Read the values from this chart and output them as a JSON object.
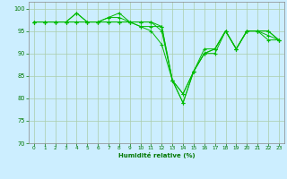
{
  "xlabel": "Humidité relative (%)",
  "background_color": "#cceeff",
  "grid_color": "#aaccaa",
  "line_color": "#00bb00",
  "marker_color": "#00bb00",
  "xlim": [
    -0.5,
    23.5
  ],
  "ylim": [
    70,
    101.5
  ],
  "yticks": [
    70,
    75,
    80,
    85,
    90,
    95,
    100
  ],
  "xticks": [
    0,
    1,
    2,
    3,
    4,
    5,
    6,
    7,
    8,
    9,
    10,
    11,
    12,
    13,
    14,
    15,
    16,
    17,
    18,
    19,
    20,
    21,
    22,
    23
  ],
  "series": [
    [
      97,
      97,
      97,
      97,
      97,
      97,
      97,
      97,
      97,
      97,
      96,
      95,
      92,
      84,
      79,
      86,
      90,
      91,
      95,
      91,
      95,
      95,
      95,
      93
    ],
    [
      97,
      97,
      97,
      97,
      99,
      97,
      97,
      98,
      98,
      97,
      97,
      97,
      95,
      84,
      79,
      86,
      90,
      91,
      95,
      91,
      95,
      95,
      93,
      93
    ],
    [
      97,
      97,
      97,
      97,
      97,
      97,
      97,
      97,
      97,
      97,
      96,
      96,
      96,
      84,
      81,
      86,
      91,
      91,
      95,
      91,
      95,
      95,
      95,
      93
    ],
    [
      97,
      97,
      97,
      97,
      99,
      97,
      97,
      98,
      99,
      97,
      97,
      97,
      96,
      84,
      81,
      86,
      90,
      90,
      95,
      91,
      95,
      95,
      94,
      93
    ]
  ]
}
